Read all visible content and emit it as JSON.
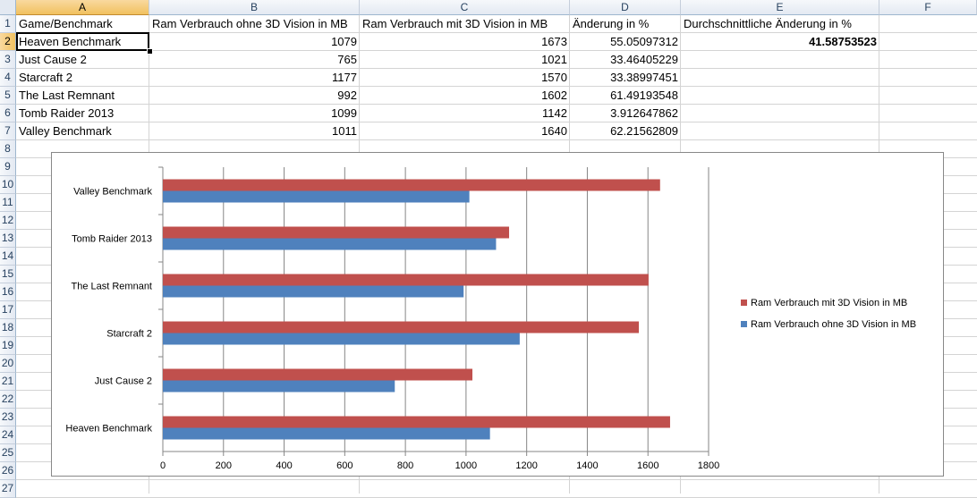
{
  "sheet": {
    "columns": [
      "A",
      "B",
      "C",
      "D",
      "E",
      "F"
    ],
    "row_numbers": [
      "1",
      "2",
      "3",
      "4",
      "5",
      "6",
      "7",
      "8",
      "9",
      "10",
      "11",
      "12",
      "13",
      "14",
      "15",
      "16",
      "17",
      "18",
      "19",
      "20",
      "21",
      "22",
      "23",
      "24",
      "25",
      "26",
      "27"
    ],
    "header_row": {
      "a": "Game/Benchmark",
      "b": "Ram Verbrauch ohne 3D Vision in MB",
      "c": "Ram Verbrauch mit 3D Vision in MB",
      "d": "Änderung in %",
      "e": "Durchschnittliche Änderung in %"
    },
    "rows": [
      {
        "a": "Heaven Benchmark",
        "b": "1079",
        "c": "1673",
        "d": "55.05097312",
        "e": "41.58753523"
      },
      {
        "a": "Just Cause 2",
        "b": "765",
        "c": "1021",
        "d": "33.46405229"
      },
      {
        "a": "Starcraft 2",
        "b": "1177",
        "c": "1570",
        "d": "33.38997451"
      },
      {
        "a": "The Last Remnant",
        "b": "992",
        "c": "1602",
        "d": "61.49193548"
      },
      {
        "a": "Tomb Raider 2013",
        "b": "1099",
        "c": "1142",
        "d": "3.912647862"
      },
      {
        "a": "Valley Benchmark",
        "b": "1011",
        "c": "1640",
        "d": "62.21562809"
      }
    ],
    "active_cell": "A2"
  },
  "chart_data": {
    "type": "bar",
    "orientation": "horizontal",
    "categories": [
      "Heaven Benchmark",
      "Just Cause 2",
      "Starcraft 2",
      "The Last Remnant",
      "Tomb Raider 2013",
      "Valley Benchmark"
    ],
    "series": [
      {
        "name": "Ram Verbrauch ohne 3D Vision in MB",
        "values": [
          1079,
          765,
          1177,
          992,
          1099,
          1011
        ],
        "color": "#4f81bd"
      },
      {
        "name": "Ram Verbrauch mit 3D Vision in MB",
        "values": [
          1673,
          1021,
          1570,
          1602,
          1142,
          1640
        ],
        "color": "#c0504d"
      }
    ],
    "x_ticks": [
      "0",
      "200",
      "400",
      "600",
      "800",
      "1000",
      "1200",
      "1400",
      "1600",
      "1800"
    ],
    "xlim": [
      0,
      1800
    ],
    "grid": true,
    "legend_position": "right",
    "legend_order": [
      "Ram Verbrauch mit 3D Vision in MB",
      "Ram Verbrauch ohne 3D Vision in MB"
    ]
  }
}
